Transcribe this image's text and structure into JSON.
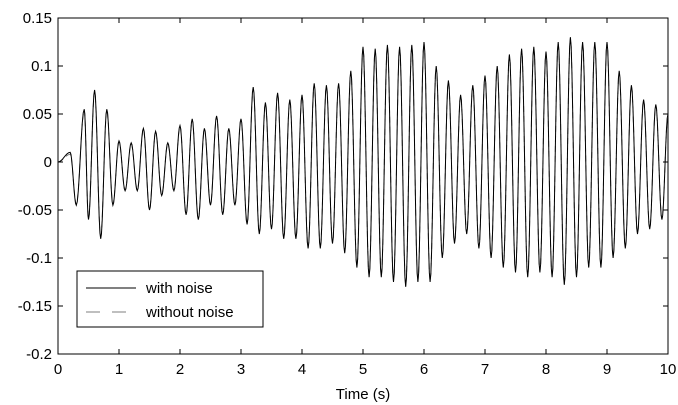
{
  "chart_data": {
    "type": "line",
    "title": "",
    "xlabel": "Time (s)",
    "ylabel": "",
    "xlim": [
      0,
      10
    ],
    "ylim": [
      -0.2,
      0.15
    ],
    "xticks": [
      0,
      1,
      2,
      3,
      4,
      5,
      6,
      7,
      8,
      9,
      10
    ],
    "xtick_labels": [
      "0",
      "1",
      "2",
      "3",
      "4",
      "5",
      "6",
      "7",
      "8",
      "9",
      "10"
    ],
    "yticks": [
      -0.2,
      -0.15,
      -0.1,
      -0.05,
      0,
      0.05,
      0.1,
      0.15
    ],
    "ytick_labels": [
      "-0.2",
      "-0.15",
      "-0.1",
      "-0.05",
      "0",
      "0.05",
      "0.1",
      "0.15"
    ],
    "grid": false,
    "legend": {
      "position": "lower-left",
      "entries": [
        "with noise",
        "without noise"
      ]
    },
    "series": [
      {
        "name": "with noise",
        "style": "solid",
        "color": "#000000",
        "x": [
          0,
          0.2,
          0.3,
          0.43,
          0.5,
          0.6,
          0.7,
          0.8,
          0.9,
          1.0,
          1.1,
          1.2,
          1.3,
          1.4,
          1.5,
          1.6,
          1.7,
          1.8,
          1.9,
          2.0,
          2.1,
          2.2,
          2.3,
          2.4,
          2.5,
          2.6,
          2.7,
          2.8,
          2.9,
          3.0,
          3.1,
          3.2,
          3.3,
          3.4,
          3.5,
          3.6,
          3.7,
          3.8,
          3.9,
          4.0,
          4.1,
          4.2,
          4.3,
          4.4,
          4.5,
          4.6,
          4.7,
          4.8,
          4.9,
          5.0,
          5.1,
          5.2,
          5.3,
          5.4,
          5.5,
          5.6,
          5.7,
          5.8,
          5.9,
          6.0,
          6.1,
          6.2,
          6.3,
          6.4,
          6.5,
          6.6,
          6.7,
          6.8,
          6.9,
          7.0,
          7.1,
          7.2,
          7.3,
          7.4,
          7.5,
          7.6,
          7.7,
          7.8,
          7.9,
          8.0,
          8.1,
          8.2,
          8.3,
          8.4,
          8.5,
          8.6,
          8.7,
          8.8,
          8.9,
          9.0,
          9.1,
          9.2,
          9.3,
          9.4,
          9.5,
          9.6,
          9.7,
          9.8,
          9.9,
          10.0
        ],
        "y": [
          0.0,
          0.01,
          -0.045,
          0.055,
          -0.06,
          0.075,
          -0.08,
          0.055,
          -0.045,
          0.022,
          -0.03,
          0.02,
          -0.03,
          0.035,
          -0.05,
          0.032,
          -0.035,
          0.02,
          -0.03,
          0.038,
          -0.055,
          0.045,
          -0.06,
          0.035,
          -0.045,
          0.048,
          -0.055,
          0.035,
          -0.045,
          0.045,
          -0.065,
          0.078,
          -0.075,
          0.062,
          -0.07,
          0.072,
          -0.08,
          0.065,
          -0.08,
          0.07,
          -0.09,
          0.082,
          -0.09,
          0.08,
          -0.085,
          0.082,
          -0.095,
          0.095,
          -0.11,
          0.12,
          -0.12,
          0.118,
          -0.12,
          0.122,
          -0.125,
          0.12,
          -0.13,
          0.122,
          -0.125,
          0.125,
          -0.125,
          0.1,
          -0.1,
          0.085,
          -0.085,
          0.07,
          -0.075,
          0.08,
          -0.09,
          0.09,
          -0.1,
          0.1,
          -0.11,
          0.112,
          -0.115,
          0.118,
          -0.12,
          0.12,
          -0.115,
          0.115,
          -0.12,
          0.125,
          -0.128,
          0.13,
          -0.12,
          0.125,
          -0.11,
          0.125,
          -0.11,
          0.125,
          -0.1,
          0.095,
          -0.09,
          0.08,
          -0.075,
          0.065,
          -0.07,
          0.06,
          -0.06,
          0.05
        ]
      },
      {
        "name": "without noise",
        "style": "dashed",
        "color": "#7f7f7f",
        "x": [
          0,
          0.2,
          0.3,
          0.43,
          0.5,
          0.6,
          0.7,
          0.8,
          0.9,
          1.0,
          1.1,
          1.2,
          1.3,
          1.4,
          1.5,
          1.6,
          1.7,
          1.8,
          1.9,
          2.0,
          2.1,
          2.2,
          2.3,
          2.4,
          2.5,
          2.6,
          2.7,
          2.8,
          2.9,
          3.0,
          3.1,
          3.2,
          3.3,
          3.4,
          3.5,
          3.6,
          3.7,
          3.8,
          3.9,
          4.0,
          4.1,
          4.2,
          4.3,
          4.4,
          4.5,
          4.6,
          4.7,
          4.8,
          4.9,
          5.0,
          5.1,
          5.2,
          5.3,
          5.4,
          5.5,
          5.6,
          5.7,
          5.8,
          5.9,
          6.0,
          6.1,
          6.2,
          6.3,
          6.4,
          6.5,
          6.6,
          6.7,
          6.8,
          6.9,
          7.0,
          7.1,
          7.2,
          7.3,
          7.4,
          7.5,
          7.6,
          7.7,
          7.8,
          7.9,
          8.0,
          8.1,
          8.2,
          8.3,
          8.4,
          8.5,
          8.6,
          8.7,
          8.8,
          8.9,
          9.0,
          9.1,
          9.2,
          9.3,
          9.4,
          9.5,
          9.6,
          9.7,
          9.8,
          9.9,
          10.0
        ],
        "y": [
          0.0,
          0.008,
          -0.044,
          0.054,
          -0.059,
          0.073,
          -0.078,
          0.054,
          -0.044,
          0.021,
          -0.029,
          0.019,
          -0.029,
          0.034,
          -0.049,
          0.031,
          -0.034,
          0.019,
          -0.029,
          0.037,
          -0.054,
          0.044,
          -0.059,
          0.034,
          -0.044,
          0.047,
          -0.054,
          0.034,
          -0.044,
          0.044,
          -0.064,
          0.076,
          -0.074,
          0.061,
          -0.069,
          0.071,
          -0.079,
          0.064,
          -0.079,
          0.069,
          -0.089,
          0.081,
          -0.089,
          0.079,
          -0.084,
          0.081,
          -0.094,
          0.094,
          -0.109,
          0.119,
          -0.119,
          0.117,
          -0.119,
          0.121,
          -0.124,
          0.119,
          -0.129,
          0.121,
          -0.124,
          0.124,
          -0.124,
          0.099,
          -0.099,
          0.084,
          -0.084,
          0.069,
          -0.074,
          0.079,
          -0.089,
          0.089,
          -0.099,
          0.099,
          -0.109,
          0.111,
          -0.114,
          0.117,
          -0.119,
          0.119,
          -0.114,
          0.114,
          -0.119,
          0.124,
          -0.127,
          0.129,
          -0.119,
          0.124,
          -0.109,
          0.124,
          -0.109,
          0.124,
          -0.099,
          0.094,
          -0.089,
          0.079,
          -0.074,
          0.064,
          -0.069,
          0.059,
          -0.059,
          0.049
        ]
      }
    ]
  }
}
